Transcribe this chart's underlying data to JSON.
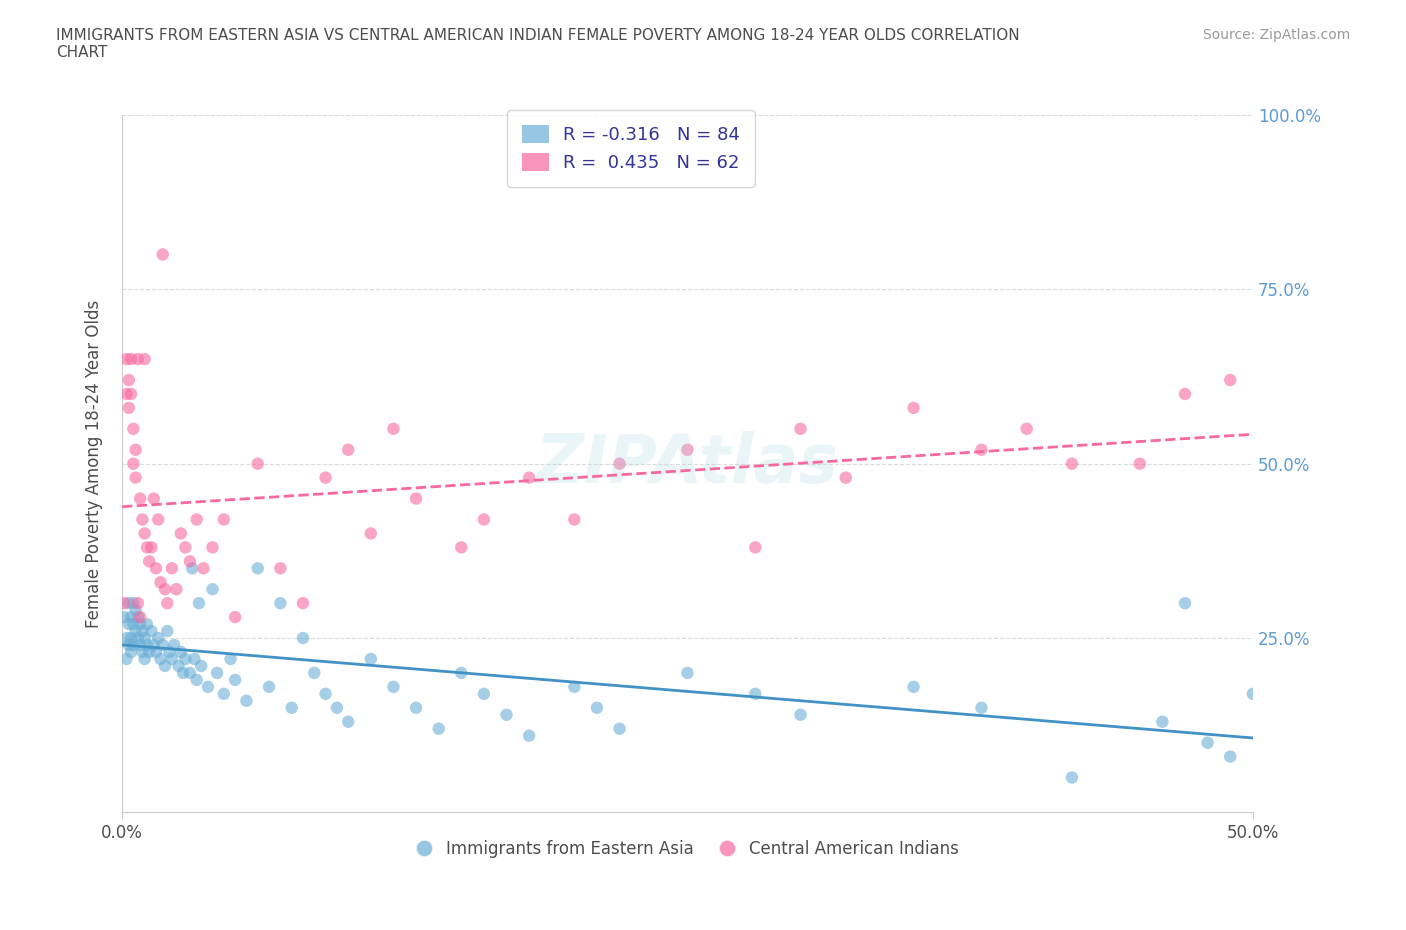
{
  "title": "IMMIGRANTS FROM EASTERN ASIA VS CENTRAL AMERICAN INDIAN FEMALE POVERTY AMONG 18-24 YEAR OLDS CORRELATION\nCHART",
  "source": "Source: ZipAtlas.com",
  "xlabel_bottom": [
    "0.0%",
    "50.0%"
  ],
  "ylabel_right": [
    "100.0%",
    "75.0%",
    "50.0%",
    "25.0%"
  ],
  "legend_labels": [
    "Immigrants from Eastern Asia",
    "Central American Indians"
  ],
  "r_blue": -0.316,
  "n_blue": 84,
  "r_pink": 0.435,
  "n_pink": 62,
  "blue_color": "#6baed6",
  "pink_color": "#f768a1",
  "blue_line_color": "#4292c6",
  "pink_line_color": "#f768a1",
  "watermark": "ZIPAtlas",
  "xlim": [
    0.0,
    0.5
  ],
  "ylim": [
    0.0,
    1.0
  ],
  "blue_scatter_x": [
    0.001,
    0.002,
    0.002,
    0.003,
    0.003,
    0.003,
    0.004,
    0.004,
    0.004,
    0.005,
    0.005,
    0.005,
    0.006,
    0.006,
    0.007,
    0.007,
    0.008,
    0.008,
    0.009,
    0.009,
    0.01,
    0.01,
    0.011,
    0.011,
    0.012,
    0.013,
    0.014,
    0.015,
    0.016,
    0.017,
    0.018,
    0.019,
    0.02,
    0.021,
    0.022,
    0.023,
    0.025,
    0.026,
    0.027,
    0.028,
    0.03,
    0.031,
    0.032,
    0.033,
    0.034,
    0.035,
    0.038,
    0.04,
    0.042,
    0.045,
    0.048,
    0.05,
    0.055,
    0.06,
    0.065,
    0.07,
    0.075,
    0.08,
    0.085,
    0.09,
    0.095,
    0.1,
    0.11,
    0.12,
    0.13,
    0.14,
    0.15,
    0.16,
    0.17,
    0.18,
    0.2,
    0.21,
    0.22,
    0.25,
    0.28,
    0.3,
    0.35,
    0.38,
    0.42,
    0.46,
    0.47,
    0.48,
    0.49,
    0.5
  ],
  "blue_scatter_y": [
    0.28,
    0.25,
    0.22,
    0.3,
    0.27,
    0.24,
    0.28,
    0.25,
    0.23,
    0.3,
    0.27,
    0.24,
    0.29,
    0.26,
    0.28,
    0.25,
    0.27,
    0.24,
    0.26,
    0.23,
    0.25,
    0.22,
    0.27,
    0.24,
    0.23,
    0.26,
    0.24,
    0.23,
    0.25,
    0.22,
    0.24,
    0.21,
    0.26,
    0.23,
    0.22,
    0.24,
    0.21,
    0.23,
    0.2,
    0.22,
    0.2,
    0.35,
    0.22,
    0.19,
    0.3,
    0.21,
    0.18,
    0.32,
    0.2,
    0.17,
    0.22,
    0.19,
    0.16,
    0.35,
    0.18,
    0.3,
    0.15,
    0.25,
    0.2,
    0.17,
    0.15,
    0.13,
    0.22,
    0.18,
    0.15,
    0.12,
    0.2,
    0.17,
    0.14,
    0.11,
    0.18,
    0.15,
    0.12,
    0.2,
    0.17,
    0.14,
    0.18,
    0.15,
    0.05,
    0.13,
    0.3,
    0.1,
    0.08,
    0.17
  ],
  "pink_scatter_x": [
    0.001,
    0.002,
    0.002,
    0.003,
    0.003,
    0.004,
    0.004,
    0.005,
    0.005,
    0.006,
    0.006,
    0.007,
    0.007,
    0.008,
    0.008,
    0.009,
    0.01,
    0.01,
    0.011,
    0.012,
    0.013,
    0.014,
    0.015,
    0.016,
    0.017,
    0.018,
    0.019,
    0.02,
    0.022,
    0.024,
    0.026,
    0.028,
    0.03,
    0.033,
    0.036,
    0.04,
    0.045,
    0.05,
    0.06,
    0.07,
    0.08,
    0.09,
    0.1,
    0.11,
    0.12,
    0.13,
    0.15,
    0.16,
    0.18,
    0.2,
    0.22,
    0.25,
    0.28,
    0.3,
    0.32,
    0.35,
    0.38,
    0.4,
    0.42,
    0.45,
    0.47,
    0.49
  ],
  "pink_scatter_y": [
    0.3,
    0.65,
    0.6,
    0.62,
    0.58,
    0.65,
    0.6,
    0.55,
    0.5,
    0.52,
    0.48,
    0.3,
    0.65,
    0.45,
    0.28,
    0.42,
    0.4,
    0.65,
    0.38,
    0.36,
    0.38,
    0.45,
    0.35,
    0.42,
    0.33,
    0.8,
    0.32,
    0.3,
    0.35,
    0.32,
    0.4,
    0.38,
    0.36,
    0.42,
    0.35,
    0.38,
    0.42,
    0.28,
    0.5,
    0.35,
    0.3,
    0.48,
    0.52,
    0.4,
    0.55,
    0.45,
    0.38,
    0.42,
    0.48,
    0.42,
    0.5,
    0.52,
    0.38,
    0.55,
    0.48,
    0.58,
    0.52,
    0.55,
    0.5,
    0.5,
    0.6,
    0.62
  ]
}
